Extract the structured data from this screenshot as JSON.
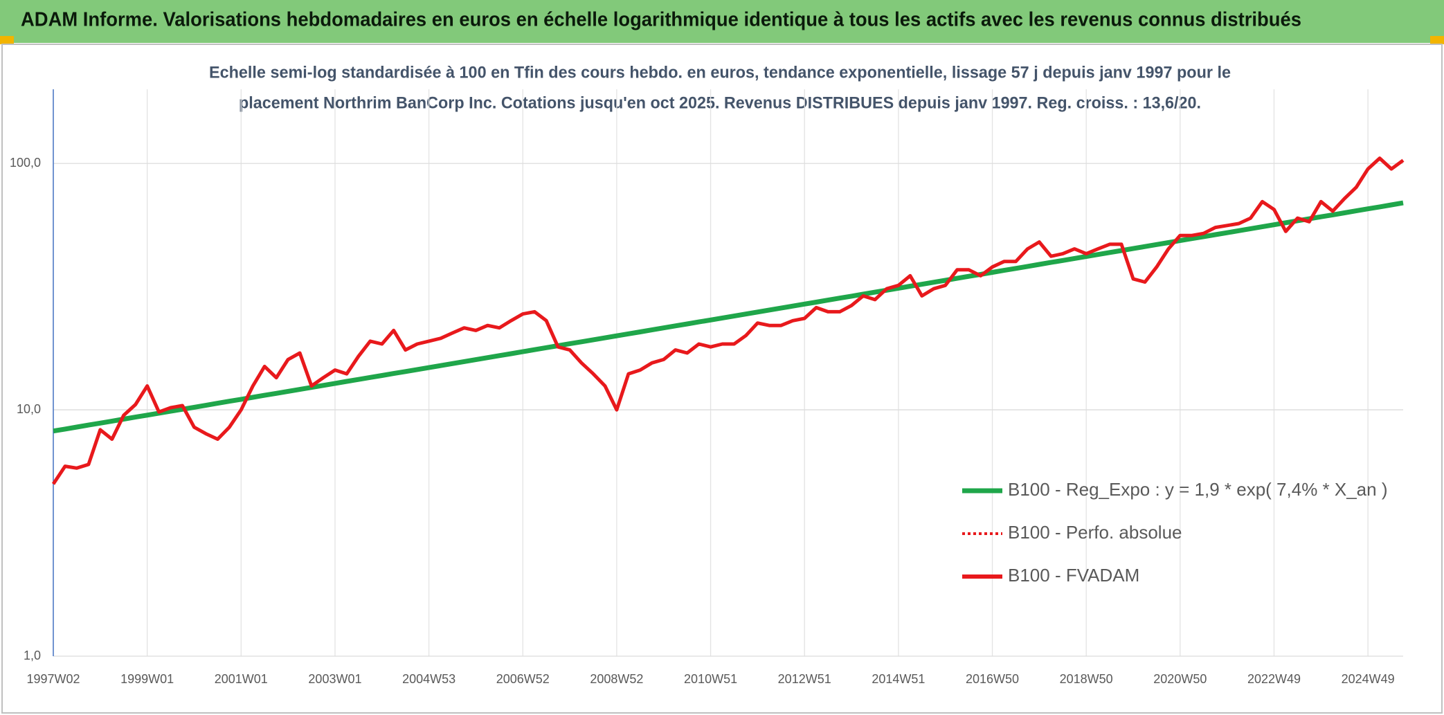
{
  "header": {
    "title": "ADAM Informe. Valorisations hebdomadaires en euros en échelle logarithmique identique à tous les actifs avec les revenus connus distribués"
  },
  "chart_data": {
    "type": "line",
    "subtitle_lines": [
      "Echelle semi-log standardisée à 100 en Tfin des cours hebdo. en euros, tendance exponentielle, lissage 57 j depuis janv 1997 pour le",
      "placement Northrim BanCorp Inc. Cotations jusqu'en oct 2025. Revenus DISTRIBUES depuis janv 1997. Reg. croiss. : 13,6/20."
    ],
    "categories": [
      "1997W02",
      null,
      null,
      null,
      null,
      null,
      null,
      null,
      "1999W01",
      null,
      null,
      null,
      null,
      null,
      null,
      null,
      "2001W01",
      null,
      null,
      null,
      null,
      null,
      null,
      null,
      "2003W01",
      null,
      null,
      null,
      null,
      null,
      null,
      null,
      "2004W53",
      null,
      null,
      null,
      null,
      null,
      null,
      null,
      "2006W52",
      null,
      null,
      null,
      null,
      null,
      null,
      null,
      "2008W52",
      null,
      null,
      null,
      null,
      null,
      null,
      null,
      "2010W51",
      null,
      null,
      null,
      null,
      null,
      null,
      null,
      "2012W51",
      null,
      null,
      null,
      null,
      null,
      null,
      null,
      "2014W51",
      null,
      null,
      null,
      null,
      null,
      null,
      null,
      "2016W50",
      null,
      null,
      null,
      null,
      null,
      null,
      null,
      "2018W50",
      null,
      null,
      null,
      null,
      null,
      null,
      null,
      "2020W50",
      null,
      null,
      null,
      null,
      null,
      null,
      null,
      "2022W49",
      null,
      null,
      null,
      null,
      null,
      null,
      null,
      "2024W49",
      null,
      null,
      null
    ],
    "series": [
      {
        "name": "B100 - Reg_Expo : y = 1,9 * exp( 7,4% *  X_an )",
        "color": "#1fa64a",
        "style": "solid",
        "values": [
          8.2,
          8.35,
          8.51,
          8.67,
          8.83,
          9.0,
          9.17,
          9.34,
          9.51,
          9.69,
          9.87,
          10.05,
          10.24,
          10.43,
          10.63,
          10.83,
          11.03,
          11.24,
          11.45,
          11.66,
          11.88,
          12.1,
          12.33,
          12.56,
          12.8,
          13.04,
          13.28,
          13.53,
          13.78,
          14.04,
          14.3,
          14.57,
          14.84,
          15.12,
          15.4,
          15.69,
          15.98,
          16.28,
          16.59,
          16.9,
          17.22,
          17.54,
          17.87,
          18.2,
          18.54,
          18.89,
          19.24,
          19.6,
          19.97,
          20.34,
          20.72,
          21.11,
          21.5,
          21.91,
          22.32,
          22.73,
          23.16,
          23.59,
          24.03,
          24.48,
          24.94,
          25.41,
          25.88,
          26.37,
          26.86,
          27.36,
          27.87,
          28.4,
          28.93,
          29.47,
          30.02,
          30.58,
          31.16,
          31.74,
          32.33,
          32.94,
          33.55,
          34.18,
          34.82,
          35.47,
          36.14,
          36.81,
          37.5,
          38.2,
          38.92,
          39.65,
          40.39,
          41.14,
          41.92,
          42.7,
          43.5,
          44.31,
          45.14,
          45.99,
          46.85,
          47.72,
          48.62,
          49.53,
          50.45,
          51.4,
          52.36,
          53.34,
          54.34,
          55.35,
          56.4,
          57.45,
          58.53,
          59.62,
          60.74,
          61.87,
          63.03,
          64.21,
          65.42,
          66.64,
          67.89,
          69.16
        ]
      },
      {
        "name": "B100 - Perfo. absolue",
        "color": "#e8191c",
        "style": "dotted",
        "values": [
          5.0,
          5.9,
          5.8,
          6.0,
          8.3,
          7.6,
          9.5,
          10.5,
          12.5,
          9.8,
          10.2,
          10.4,
          8.5,
          8.0,
          7.6,
          8.5,
          10.0,
          12.5,
          15.0,
          13.5,
          16.0,
          17.0,
          12.5,
          13.5,
          14.5,
          14.0,
          16.5,
          19.0,
          18.5,
          21.0,
          17.5,
          18.5,
          19.0,
          19.5,
          20.5,
          21.5,
          21.0,
          22.0,
          21.5,
          23.0,
          24.5,
          25.0,
          23.0,
          18.0,
          17.5,
          15.5,
          14.0,
          12.5,
          10.0,
          14.0,
          14.5,
          15.5,
          16.0,
          17.5,
          17.0,
          18.5,
          18.0,
          18.5,
          18.5,
          20.0,
          22.5,
          22.0,
          22.0,
          23.0,
          23.5,
          26.0,
          25.0,
          25.0,
          26.5,
          29.0,
          28.0,
          31.0,
          32.0,
          35.0,
          29.0,
          31.0,
          32.0,
          37.0,
          37.0,
          35.0,
          38.0,
          40.0,
          40.0,
          45.0,
          48.0,
          42.0,
          43.0,
          45.0,
          43.0,
          45.0,
          47.0,
          47.0,
          34.0,
          33.0,
          38.0,
          45.0,
          51.0,
          51.0,
          52.0,
          55.0,
          56.0,
          57.0,
          60.0,
          70.0,
          65.0,
          53.0,
          60.0,
          58.0,
          70.0,
          64.0,
          72.0,
          80.0,
          95.0,
          105.0,
          95.0,
          103.0
        ]
      },
      {
        "name": "B100 - FVADAM",
        "color": "#e8191c",
        "style": "solid",
        "values": [
          5.0,
          5.9,
          5.8,
          6.0,
          8.3,
          7.6,
          9.5,
          10.5,
          12.5,
          9.8,
          10.2,
          10.4,
          8.5,
          8.0,
          7.6,
          8.5,
          10.0,
          12.5,
          15.0,
          13.5,
          16.0,
          17.0,
          12.5,
          13.5,
          14.5,
          14.0,
          16.5,
          19.0,
          18.5,
          21.0,
          17.5,
          18.5,
          19.0,
          19.5,
          20.5,
          21.5,
          21.0,
          22.0,
          21.5,
          23.0,
          24.5,
          25.0,
          23.0,
          18.0,
          17.5,
          15.5,
          14.0,
          12.5,
          10.0,
          14.0,
          14.5,
          15.5,
          16.0,
          17.5,
          17.0,
          18.5,
          18.0,
          18.5,
          18.5,
          20.0,
          22.5,
          22.0,
          22.0,
          23.0,
          23.5,
          26.0,
          25.0,
          25.0,
          26.5,
          29.0,
          28.0,
          31.0,
          32.0,
          35.0,
          29.0,
          31.0,
          32.0,
          37.0,
          37.0,
          35.0,
          38.0,
          40.0,
          40.0,
          45.0,
          48.0,
          42.0,
          43.0,
          45.0,
          43.0,
          45.0,
          47.0,
          47.0,
          34.0,
          33.0,
          38.0,
          45.0,
          51.0,
          51.0,
          52.0,
          55.0,
          56.0,
          57.0,
          60.0,
          70.0,
          65.0,
          53.0,
          60.0,
          58.0,
          70.0,
          64.0,
          72.0,
          80.0,
          95.0,
          105.0,
          95.0,
          103.0
        ]
      }
    ],
    "ylim": [
      1,
      200
    ],
    "log_scale": true,
    "yticks": [
      {
        "value": 1,
        "label": "1,0"
      },
      {
        "value": 10,
        "label": "10,0"
      },
      {
        "value": 100,
        "label": "100,0"
      }
    ],
    "grid": true,
    "legend_position": "lower-right"
  }
}
